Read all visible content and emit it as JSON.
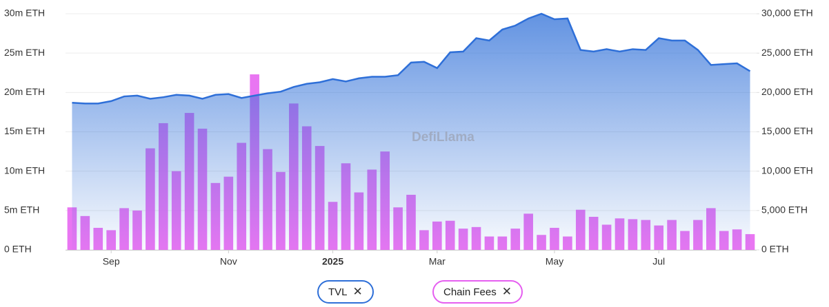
{
  "chart_data": {
    "type": "bar-area",
    "watermark": "DefiLlama",
    "categories": [
      null,
      null,
      null,
      "Sep",
      null,
      null,
      null,
      null,
      null,
      null,
      null,
      null,
      "Nov",
      null,
      null,
      null,
      null,
      null,
      null,
      null,
      "2025",
      null,
      null,
      null,
      null,
      null,
      null,
      null,
      "Mar",
      null,
      null,
      null,
      null,
      null,
      null,
      null,
      null,
      "May",
      null,
      null,
      null,
      null,
      null,
      null,
      null,
      "Jul",
      null,
      null,
      null,
      null,
      null,
      null,
      null
    ],
    "series": [
      {
        "name": "TVL",
        "type": "area",
        "axis": "y",
        "color": "#2e6fd8",
        "values": [
          18.7,
          18.6,
          18.6,
          18.9,
          19.5,
          19.6,
          19.2,
          19.4,
          19.7,
          19.6,
          19.2,
          19.7,
          19.8,
          19.3,
          19.6,
          19.9,
          20.1,
          20.7,
          21.1,
          21.3,
          21.7,
          21.4,
          21.8,
          22.0,
          22.0,
          22.2,
          23.8,
          23.9,
          23.1,
          25.1,
          25.2,
          26.9,
          26.6,
          28.0,
          28.5,
          29.4,
          30.0,
          29.3,
          29.4,
          25.4,
          25.2,
          25.5,
          25.2,
          25.5,
          25.4,
          26.9,
          26.6,
          26.6,
          25.4,
          23.5,
          23.6,
          23.7,
          22.7
        ]
      },
      {
        "name": "Chain Fees",
        "type": "bar",
        "axis": "y2",
        "color": "#e55ef0",
        "values": [
          5400,
          4300,
          2800,
          2500,
          5300,
          5000,
          12900,
          16100,
          10000,
          17400,
          15400,
          8500,
          9300,
          13600,
          22300,
          12800,
          9900,
          18600,
          15700,
          13200,
          6100,
          11000,
          7300,
          10200,
          12500,
          5400,
          7000,
          2500,
          3600,
          3700,
          2700,
          2900,
          1700,
          1700,
          2700,
          4600,
          1900,
          2800,
          1700,
          5100,
          4200,
          3200,
          4000,
          3900,
          3800,
          3100,
          3800,
          2400,
          3800,
          5300,
          2400,
          2600,
          2000
        ]
      }
    ],
    "ylim": [
      0,
      30
    ],
    "yticks": [
      {
        "value": 0,
        "label": "0 ETH"
      },
      {
        "value": 5,
        "label": "5m ETH"
      },
      {
        "value": 10,
        "label": "10m ETH"
      },
      {
        "value": 15,
        "label": "15m ETH"
      },
      {
        "value": 20,
        "label": "20m ETH"
      },
      {
        "value": 25,
        "label": "25m ETH"
      },
      {
        "value": 30,
        "label": "30m ETH"
      }
    ],
    "y2lim": [
      0,
      30000
    ],
    "y2ticks": [
      {
        "value": 0,
        "label": "0 ETH"
      },
      {
        "value": 5000,
        "label": "5,000 ETH"
      },
      {
        "value": 10000,
        "label": "10,000 ETH"
      },
      {
        "value": 15000,
        "label": "15,000 ETH"
      },
      {
        "value": 20000,
        "label": "20,000 ETH"
      },
      {
        "value": 25000,
        "label": "25,000 ETH"
      },
      {
        "value": 30000,
        "label": "30,000 ETH"
      }
    ],
    "grid": true
  }
}
